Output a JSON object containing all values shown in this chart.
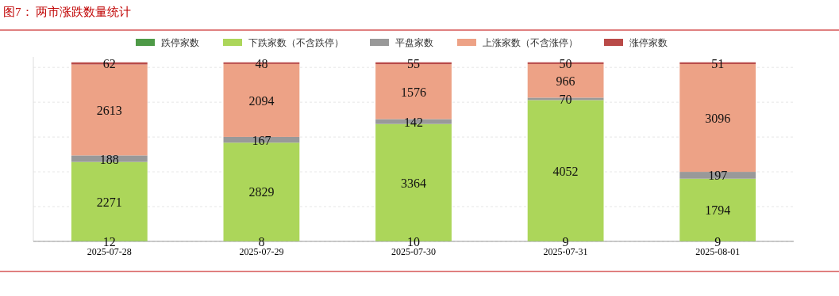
{
  "chart_data": {
    "type": "bar",
    "title": "图7：  两市涨跌数量统计",
    "stacked": true,
    "categories": [
      "2025-07-28",
      "2025-07-29",
      "2025-07-30",
      "2025-07-31",
      "2025-08-01"
    ],
    "series": [
      {
        "name": "跌停家数",
        "color": "#4e9a47",
        "values": [
          12,
          8,
          10,
          9,
          9
        ]
      },
      {
        "name": "下跌家数（不含跌停）",
        "color": "#acd65a",
        "values": [
          2271,
          2829,
          3364,
          4052,
          1794
        ]
      },
      {
        "name": "平盘家数",
        "color": "#999999",
        "values": [
          188,
          167,
          142,
          70,
          197
        ]
      },
      {
        "name": "上涨家数（不含涨停）",
        "color": "#eda286",
        "values": [
          2613,
          2094,
          1576,
          966,
          3096
        ]
      },
      {
        "name": "涨停家数",
        "color": "#b94a48",
        "values": [
          62,
          48,
          55,
          50,
          51
        ]
      }
    ],
    "ylim": [
      0,
      5300
    ],
    "yticks": [
      {
        "value": 0,
        "label": null
      },
      {
        "value": 1000,
        "label": null
      },
      {
        "value": 2000,
        "label": null
      },
      {
        "value": 3000,
        "label": null
      },
      {
        "value": 4000,
        "label": null
      },
      {
        "value": 5000,
        "label": null
      }
    ],
    "tick_labels": "x",
    "grid": "y",
    "legend": "top",
    "data_labels": true
  }
}
